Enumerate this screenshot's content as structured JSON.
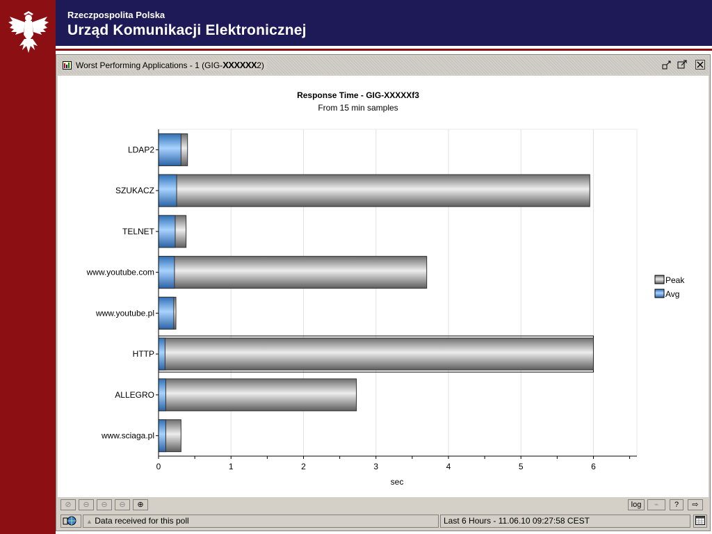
{
  "header": {
    "org_small": "Rzeczpospolita Polska",
    "org_big": "Urząd Komunikacji Elektronicznej"
  },
  "window": {
    "title_prefix": "Worst Performing Applications - 1 (GIG-",
    "title_mask": "XXXXXX",
    "title_suffix": "2)"
  },
  "toolbar": {
    "log_label": "log"
  },
  "status": {
    "message": "Data received for this poll",
    "time_range": "Last 6 Hours - 11.06.10 09:27:58 CEST"
  },
  "colors": {
    "peak": "#b4b4b4",
    "avg": "#5aa0e6",
    "header_bg": "#1e1a57",
    "strip_bg": "#8b0f13"
  },
  "chart_data": {
    "type": "bar",
    "orientation": "horizontal",
    "title": "Response Time - GIG-XXXXX",
    "title_suffix": "f3",
    "subtitle": "From 15 min samples",
    "xlabel": "sec",
    "xlim": [
      0,
      6.6
    ],
    "xticks": [
      0,
      1,
      2,
      3,
      4,
      5,
      6
    ],
    "categories": [
      "LDAP2",
      "SZUKACZ",
      "TELNET",
      "www.youtube.com",
      "www.youtube.pl",
      "HTTP",
      "ALLEGRO",
      "www.sciaga.pl"
    ],
    "series": [
      {
        "name": "Peak",
        "values": [
          0.4,
          5.95,
          0.38,
          3.7,
          0.24,
          6.0,
          2.73,
          0.31
        ]
      },
      {
        "name": "Avg",
        "values": [
          0.31,
          0.25,
          0.23,
          0.22,
          0.21,
          0.09,
          0.1,
          0.1
        ]
      }
    ],
    "highlighted_category": "HTTP",
    "legend_position": "right",
    "grid": "vertical"
  }
}
